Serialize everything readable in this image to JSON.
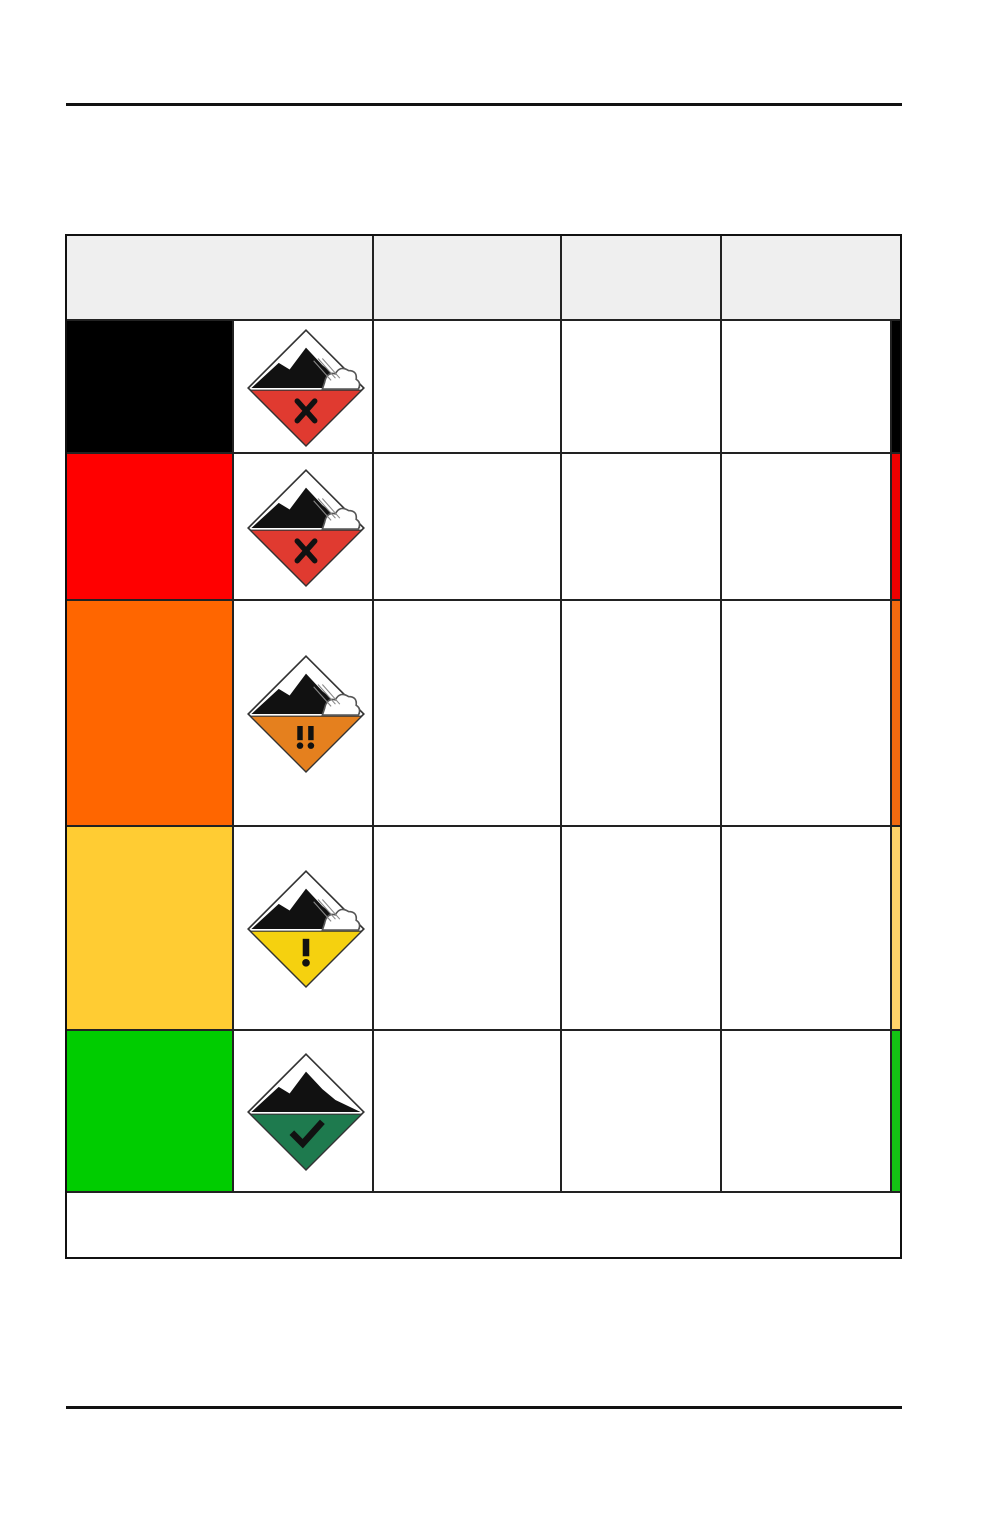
{
  "table": {
    "rows": [
      {
        "level_color": "#000000",
        "icon": "avalanche-danger-extreme-icon",
        "icon_color": "#e03a30",
        "symbol": "x",
        "stripe_color": "#000000",
        "cloud": true
      },
      {
        "level_color": "#ff0000",
        "icon": "avalanche-danger-high-icon",
        "icon_color": "#e03a30",
        "symbol": "x",
        "stripe_color": "#ee0000",
        "cloud": true
      },
      {
        "level_color": "#ff6600",
        "icon": "avalanche-danger-considerable-icon",
        "icon_color": "#e5801e",
        "symbol": "!!",
        "stripe_color": "#f26a10",
        "cloud": true
      },
      {
        "level_color": "#ffcc33",
        "icon": "avalanche-danger-moderate-icon",
        "icon_color": "#f5d10f",
        "symbol": "!",
        "stripe_color": "#ffd36a",
        "cloud": true
      },
      {
        "level_color": "#00cc00",
        "icon": "avalanche-danger-low-icon",
        "icon_color": "#1e7a4e",
        "symbol": "check",
        "stripe_color": "#14c414",
        "cloud": false
      }
    ]
  }
}
